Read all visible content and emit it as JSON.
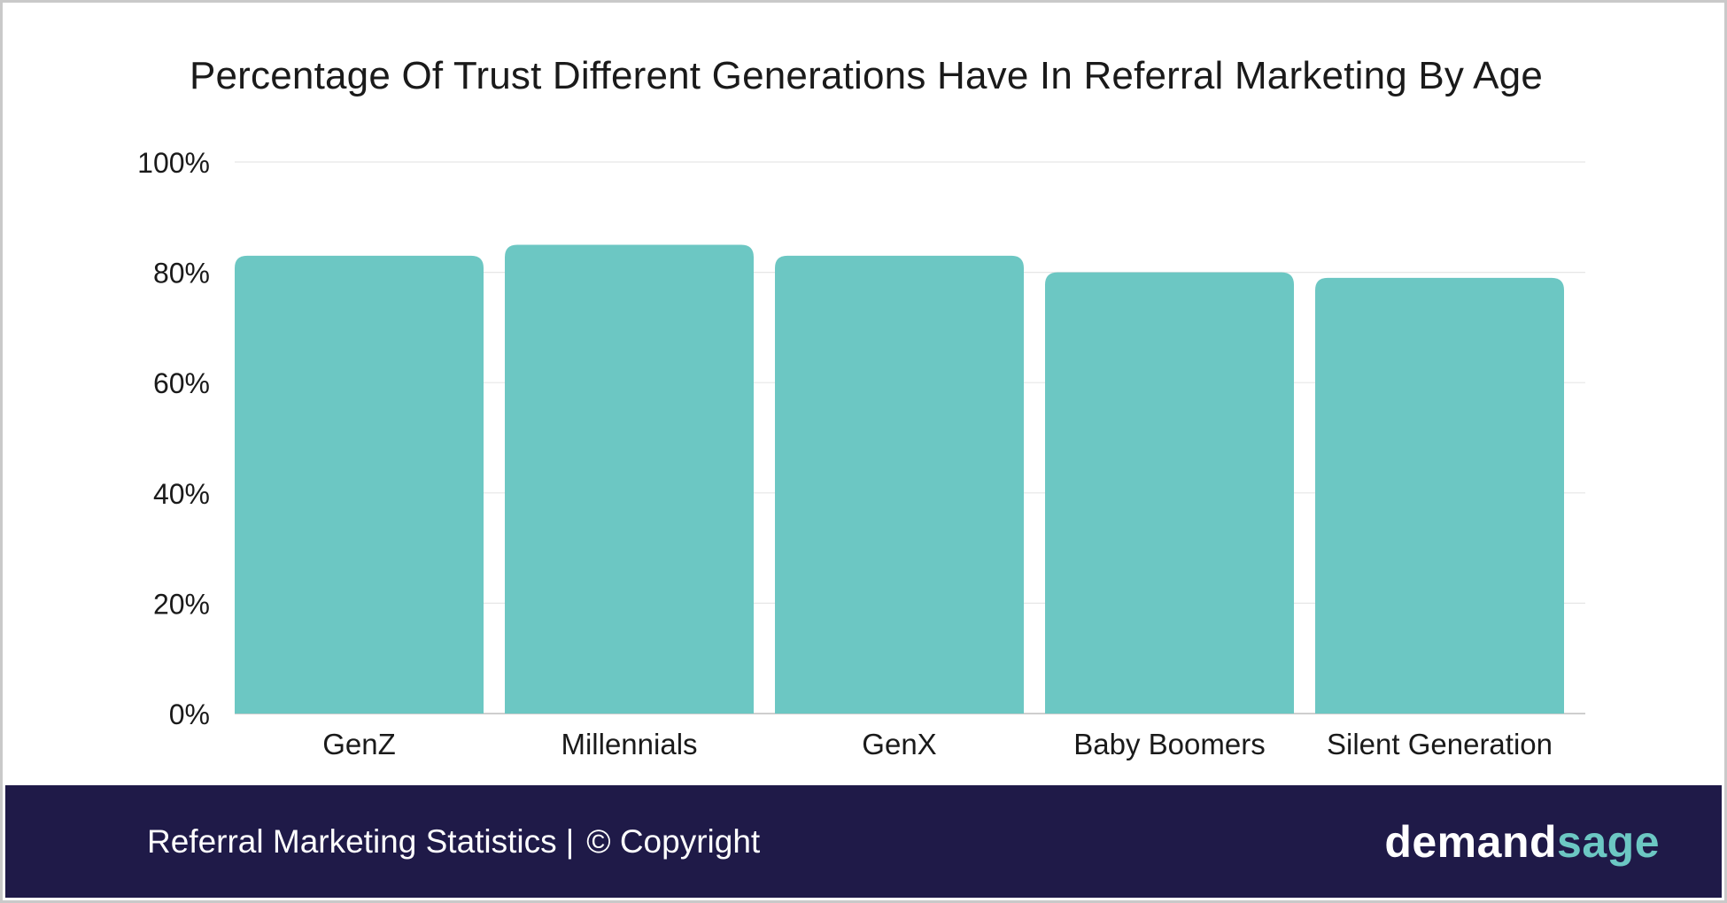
{
  "chart_data": {
    "type": "bar",
    "title": "Percentage Of Trust Different Generations Have In Referral Marketing By Age",
    "xlabel": "",
    "ylabel": "",
    "categories": [
      "GenZ",
      "Millennials",
      "GenX",
      "Baby Boomers",
      "Silent Generation"
    ],
    "values": [
      83,
      85,
      83,
      80,
      79
    ],
    "unit": "%",
    "ylim": [
      0,
      100
    ],
    "yticks": [
      "0%",
      "20%",
      "40%",
      "60%",
      "80%",
      "100%"
    ],
    "ytick_values": [
      0,
      20,
      40,
      60,
      80,
      100
    ],
    "grid": true,
    "bar_color": "#6cc7c3"
  },
  "footer": {
    "caption": "Referral Marketing Statistics",
    "separator": "|",
    "copyright": "© Copyright",
    "brand_part1": "demand",
    "brand_part2": "sage"
  },
  "colors": {
    "footer_bg": "#1f1a48",
    "bar": "#6cc7c3",
    "brand_accent": "#6cc7c3"
  }
}
